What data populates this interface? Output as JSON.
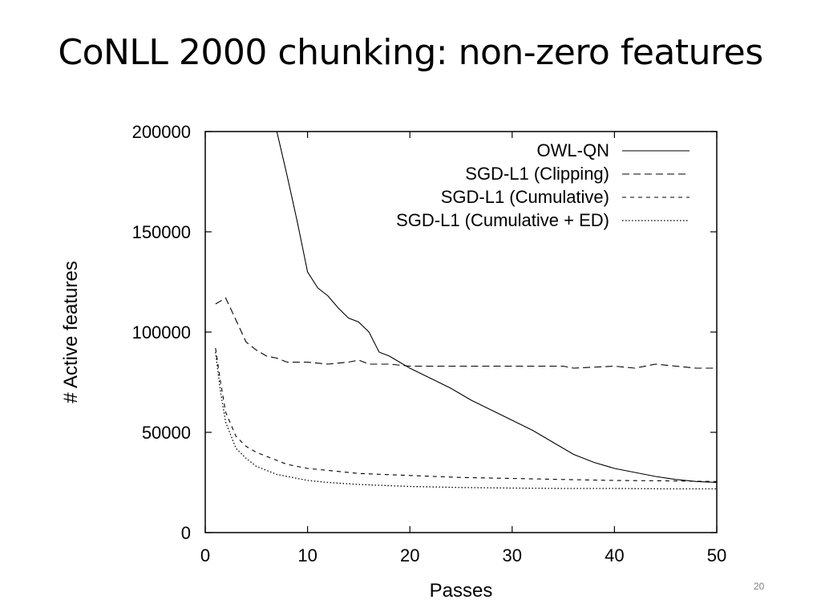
{
  "slide": {
    "title": "CoNLL 2000 chunking: non-zero features",
    "page_number": "20"
  },
  "chart_data": {
    "type": "line",
    "xlabel": "Passes",
    "ylabel": "# Active features",
    "xlim": [
      0,
      50
    ],
    "ylim": [
      0,
      200000
    ],
    "xticks": [
      0,
      10,
      20,
      30,
      40,
      50
    ],
    "yticks": [
      0,
      50000,
      100000,
      150000,
      200000
    ],
    "grid": false,
    "legend_position": "top-right",
    "series": [
      {
        "name": "OWL-QN",
        "style": "solid",
        "x": [
          7,
          8,
          9,
          10,
          11,
          12,
          13,
          14,
          15,
          16,
          17,
          18,
          19,
          20,
          22,
          24,
          26,
          28,
          30,
          32,
          34,
          36,
          38,
          40,
          42,
          44,
          46,
          48,
          50
        ],
        "y": [
          200000,
          178000,
          155000,
          130000,
          122000,
          118000,
          112000,
          107000,
          105000,
          100000,
          90000,
          88000,
          85000,
          82000,
          77000,
          72000,
          66000,
          61000,
          56000,
          51000,
          45000,
          39000,
          35000,
          32000,
          30000,
          28000,
          26500,
          25500,
          25000
        ]
      },
      {
        "name": "SGD-L1 (Clipping)",
        "style": "long-dash",
        "x": [
          1,
          2,
          3,
          4,
          5,
          6,
          7,
          8,
          10,
          12,
          14,
          15,
          16,
          18,
          20,
          25,
          30,
          35,
          36,
          40,
          42,
          44,
          46,
          48,
          50
        ],
        "y": [
          114000,
          117000,
          106000,
          95000,
          91000,
          88000,
          87000,
          85000,
          85000,
          84000,
          85000,
          86000,
          84000,
          84000,
          83000,
          83000,
          83000,
          83000,
          82000,
          83000,
          82000,
          84000,
          83000,
          82000,
          82000
        ]
      },
      {
        "name": "SGD-L1 (Cumulative)",
        "style": "short-dash",
        "x": [
          1,
          1.5,
          2,
          3,
          4,
          5,
          6,
          7,
          8,
          10,
          12,
          15,
          20,
          25,
          30,
          35,
          40,
          45,
          50
        ],
        "y": [
          92000,
          75000,
          60000,
          48000,
          43000,
          40000,
          38000,
          36000,
          34000,
          32000,
          31000,
          29500,
          28500,
          27500,
          27000,
          26500,
          26000,
          25800,
          25500
        ]
      },
      {
        "name": "SGD-L1 (Cumulative + ED)",
        "style": "dotted",
        "x": [
          1,
          1.5,
          2,
          3,
          4,
          5,
          6,
          7,
          8,
          10,
          12,
          15,
          20,
          25,
          30,
          35,
          40,
          45,
          50
        ],
        "y": [
          90000,
          70000,
          55000,
          42000,
          37000,
          33000,
          31000,
          29000,
          28000,
          26000,
          25000,
          24000,
          23000,
          22500,
          22200,
          22000,
          22000,
          21800,
          21800
        ]
      }
    ]
  }
}
